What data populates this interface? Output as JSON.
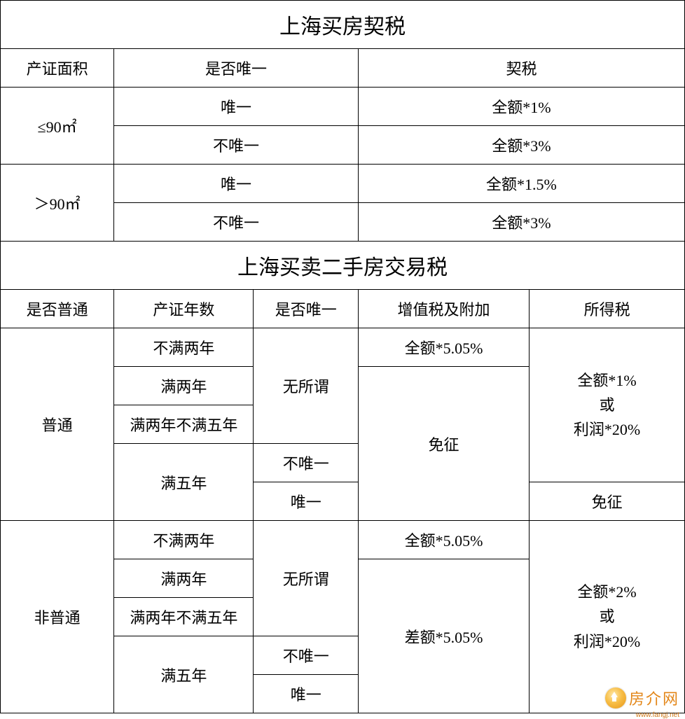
{
  "table1": {
    "title": "上海买房契税",
    "headers": {
      "area": "产证面积",
      "unique": "是否唯一",
      "tax": "契税"
    },
    "rows": [
      {
        "area": "≤90㎡",
        "unique": "唯一",
        "tax": "全额*1%"
      },
      {
        "area": "≤90㎡",
        "unique": "不唯一",
        "tax": "全额*3%"
      },
      {
        "area": "＞90㎡",
        "unique": "唯一",
        "tax": "全额*1.5%"
      },
      {
        "area": "＞90㎡",
        "unique": "不唯一",
        "tax": "全额*3%"
      }
    ]
  },
  "table2": {
    "title": "上海买卖二手房交易税",
    "headers": {
      "ordinary": "是否普通",
      "years": "产证年数",
      "unique": "是否唯一",
      "vat": "增值税及附加",
      "income": "所得税"
    },
    "ordinary_label": "普通",
    "nonordinary_label": "非普通",
    "years": {
      "lt2": "不满两年",
      "ge2": "满两年",
      "ge2lt5": "满两年不满五年",
      "ge5": "满五年"
    },
    "unique": {
      "any": "无所谓",
      "yes": "唯一",
      "no": "不唯一"
    },
    "vat": {
      "full505": "全额*5.05%",
      "exempt": "免征",
      "diff505": "差额*5.05%"
    },
    "income": {
      "ordinary_default": "全额*1%\n或\n利润*20%",
      "exempt": "免征",
      "nonordinary": "全额*2%\n或\n利润*20%"
    }
  },
  "watermark": {
    "brand": "房介网",
    "url": "www.fangj.net"
  },
  "colors": {
    "border": "#000000",
    "background": "#ffffff",
    "text": "#000000",
    "watermark_text": "#e07a00"
  },
  "typography": {
    "title_fontsize": 30,
    "cell_fontsize": 22,
    "font_family": "SimSun"
  }
}
